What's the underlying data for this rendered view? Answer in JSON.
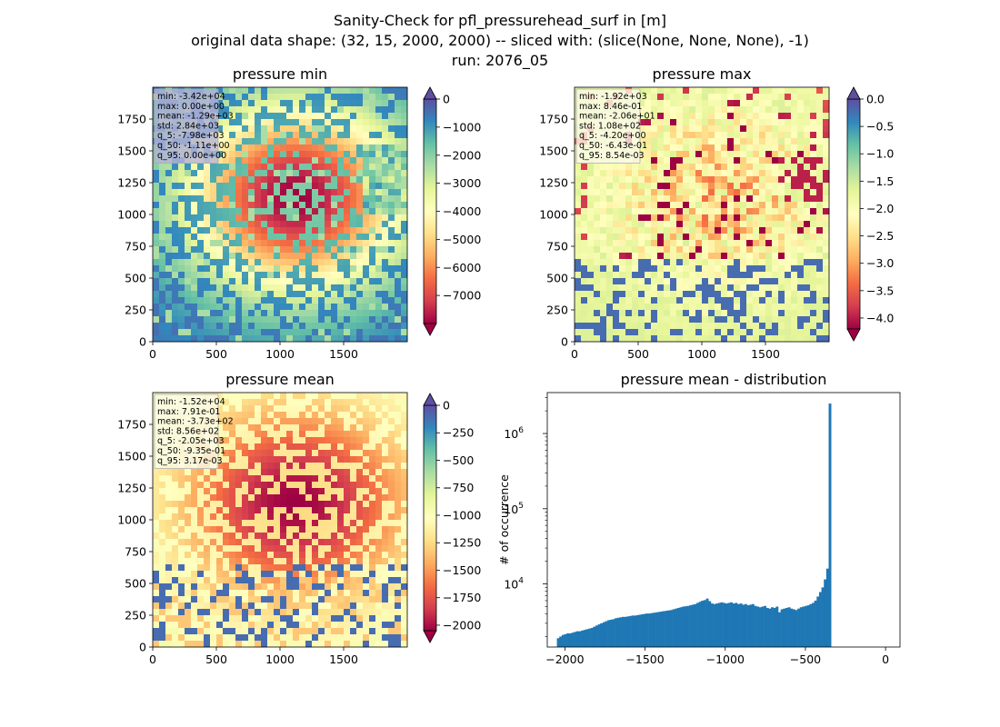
{
  "figure": {
    "title_lines": [
      "Sanity-Check for pfl_pressurehead_surf in [m]",
      "original data shape: (32, 15, 2000, 2000) -- sliced with: (slice(None, None, None), -1)",
      "run: 2076_05"
    ]
  },
  "chart_data": [
    {
      "type": "heatmap",
      "title": "pressure min",
      "xlim": [
        0,
        2000
      ],
      "ylim": [
        0,
        2000
      ],
      "x_ticks": [
        "0",
        "500",
        "1000",
        "1500"
      ],
      "y_ticks": [
        "0",
        "250",
        "500",
        "750",
        "1000",
        "1250",
        "1500",
        "1750"
      ],
      "colormap": "Spectral",
      "colorbar": {
        "range": [
          -8000,
          0
        ],
        "ticks": [
          "0",
          "−1000",
          "−2000",
          "−3000",
          "−4000",
          "−5000",
          "−6000",
          "−7000"
        ],
        "extend": "both"
      },
      "stats": [
        "min: -3.42e+04",
        "max: 0.00e+00",
        "mean: -1.29e+03",
        "std: 2.84e+03",
        "q_5: -7.98e+03",
        "q_50: -1.11e+00",
        "q_95: 0.00e+00"
      ]
    },
    {
      "type": "heatmap",
      "title": "pressure max",
      "xlim": [
        0,
        2000
      ],
      "ylim": [
        0,
        2000
      ],
      "x_ticks": [
        "0",
        "500",
        "1000",
        "1500"
      ],
      "y_ticks": [
        "0",
        "250",
        "500",
        "750",
        "1000",
        "1250",
        "1500",
        "1750"
      ],
      "colormap": "Spectral",
      "colorbar": {
        "range": [
          -4.2,
          0
        ],
        "ticks": [
          "0.0",
          "−0.5",
          "−1.0",
          "−1.5",
          "−2.0",
          "−2.5",
          "−3.0",
          "−3.5",
          "−4.0"
        ],
        "extend": "both"
      },
      "stats": [
        "min: -1.92e+03",
        "max: 8.46e-01",
        "mean: -2.06e+01",
        "std: 1.08e+02",
        "q_5: -4.20e+00",
        "q_50: -6.43e-01",
        "q_95: 8.54e-03"
      ]
    },
    {
      "type": "heatmap",
      "title": "pressure mean",
      "xlim": [
        0,
        2000
      ],
      "ylim": [
        0,
        2000
      ],
      "x_ticks": [
        "0",
        "500",
        "1000",
        "1500"
      ],
      "y_ticks": [
        "0",
        "250",
        "500",
        "750",
        "1000",
        "1250",
        "1500",
        "1750"
      ],
      "colormap": "Spectral",
      "colorbar": {
        "range": [
          -2050,
          0
        ],
        "ticks": [
          "0",
          "−250",
          "−500",
          "−750",
          "−1000",
          "−1250",
          "−1500",
          "−1750",
          "−2000"
        ],
        "extend": "both"
      },
      "stats": [
        "min: -1.52e+04",
        "max: 7.91e-01",
        "mean: -3.73e+02",
        "std: 8.56e+02",
        "q_5: -2.05e+03",
        "q_50: -9.35e-01",
        "q_95: 3.17e-03"
      ]
    },
    {
      "type": "bar",
      "subtype": "histogram",
      "title": "pressure mean - distribution",
      "ylabel": "# of occurrence",
      "yscale": "log",
      "xlim": [
        -2110,
        90
      ],
      "ylim": [
        1450,
        3500000
      ],
      "x_ticks": [
        "−2000",
        "−1500",
        "−1000",
        "−500",
        "0"
      ],
      "y_ticks": [
        {
          "base": "10",
          "exp": "4"
        },
        {
          "base": "10",
          "exp": "5"
        },
        {
          "base": "10",
          "exp": "6"
        }
      ],
      "bar_color": "#1f77b4",
      "bins": {
        "start": -2050,
        "width": 15
      },
      "counts": [
        1900,
        2000,
        2100,
        2150,
        2200,
        2200,
        2250,
        2300,
        2350,
        2350,
        2400,
        2450,
        2500,
        2550,
        2600,
        2700,
        2800,
        2900,
        3000,
        3100,
        3200,
        3300,
        3350,
        3400,
        3500,
        3550,
        3600,
        3650,
        3650,
        3700,
        3750,
        3800,
        3800,
        3850,
        3900,
        3950,
        4000,
        4050,
        4050,
        4100,
        4150,
        4200,
        4250,
        4300,
        4350,
        4400,
        4450,
        4500,
        4600,
        4700,
        4800,
        4900,
        5000,
        5050,
        5100,
        5200,
        5300,
        5400,
        5600,
        5800,
        6000,
        6100,
        6400,
        5900,
        5500,
        5400,
        5500,
        5600,
        5700,
        5600,
        5500,
        5600,
        5700,
        5500,
        5600,
        5400,
        5500,
        5300,
        5400,
        5200,
        5300,
        5400,
        5100,
        5000,
        4900,
        5000,
        5100,
        4800,
        4700,
        4900,
        4800,
        5000,
        4200,
        4600,
        4700,
        4800,
        4900,
        4700,
        4600,
        4500,
        4700,
        4900,
        5000,
        5100,
        5200,
        5400,
        5600,
        6000,
        6800,
        7800,
        9000,
        11500,
        16000,
        2500000
      ]
    }
  ]
}
